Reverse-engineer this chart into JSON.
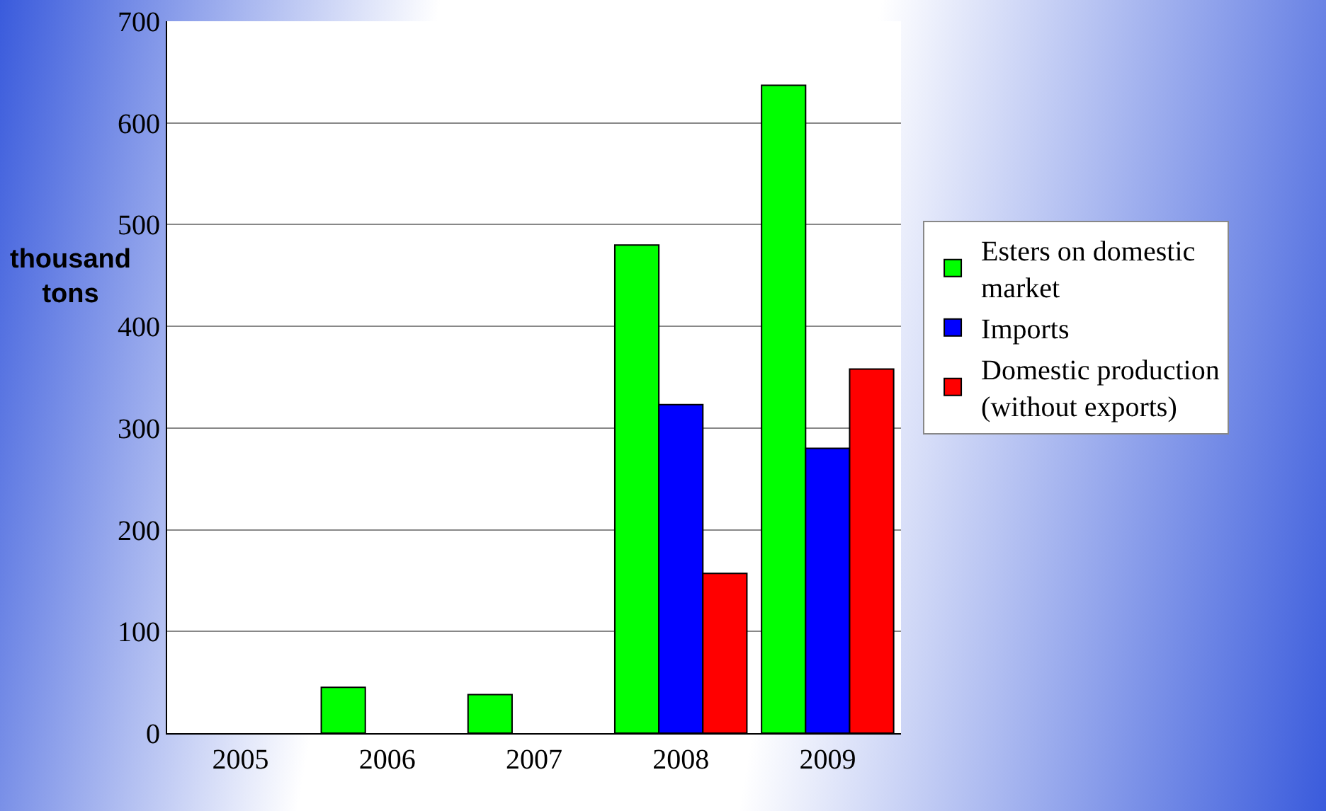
{
  "chart_data": {
    "type": "bar",
    "ylabel": "thousand tons",
    "categories": [
      "2005",
      "2006",
      "2007",
      "2008",
      "2009"
    ],
    "series": [
      {
        "name": "Esters on domestic market",
        "color": "#00ff00",
        "values": [
          null,
          45,
          38,
          480,
          637
        ]
      },
      {
        "name": "Imports",
        "color": "#0000ff",
        "values": [
          null,
          null,
          null,
          323,
          280
        ]
      },
      {
        "name": "Domestic production (without exports)",
        "color": "#ff0000",
        "values": [
          null,
          null,
          null,
          157,
          358
        ]
      }
    ],
    "ylim": [
      0,
      700
    ],
    "yticks": [
      0,
      100,
      200,
      300,
      400,
      500,
      600,
      700
    ],
    "grid": "y",
    "legend": "right"
  }
}
